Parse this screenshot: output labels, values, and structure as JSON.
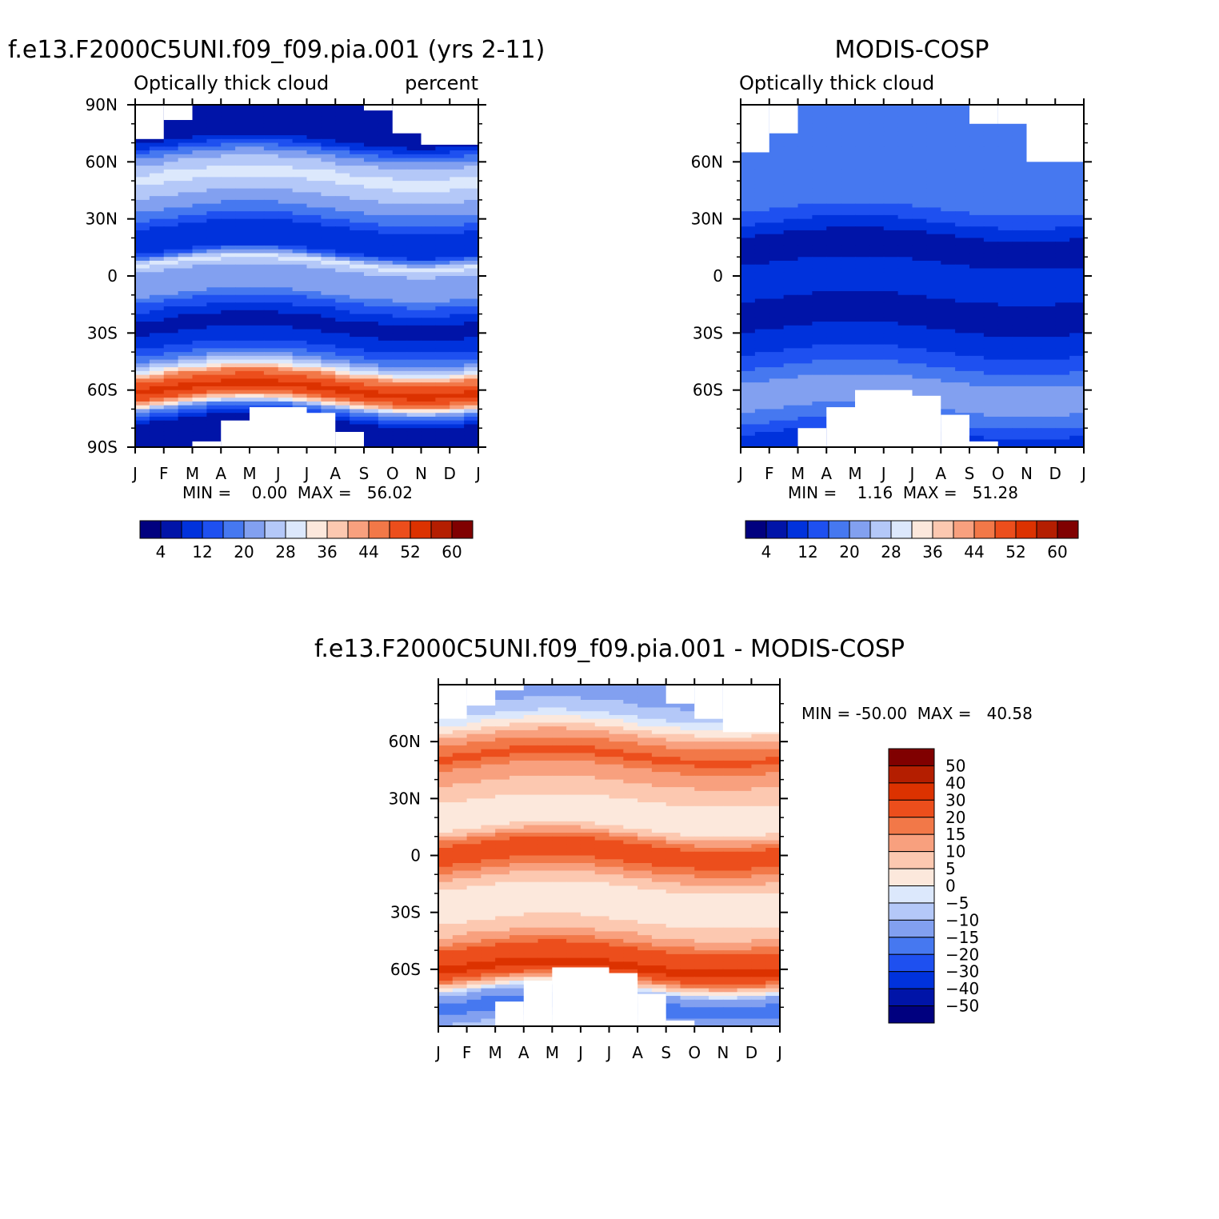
{
  "chart_data": [
    {
      "type": "heatmap",
      "title": "f.e13.F2000C5UNI.f09_f09.pia.001 (yrs 2-11)",
      "subtitle_left": "Optically thick cloud",
      "subtitle_right": "percent",
      "x_ticklabels": [
        "J",
        "F",
        "M",
        "A",
        "M",
        "J",
        "J",
        "A",
        "S",
        "O",
        "N",
        "D",
        "J"
      ],
      "y_ticklabels": [
        "90N",
        "60N",
        "30N",
        "0",
        "30S",
        "60S",
        "90S"
      ],
      "y_tick_values": [
        90,
        60,
        30,
        0,
        -30,
        -60,
        -90
      ],
      "ylim": [
        -90,
        90
      ],
      "stats_text": "MIN =    0.00  MAX =   56.02",
      "min": 0.0,
      "max": 56.02,
      "colorbar": {
        "labels": [
          "4",
          "12",
          "20",
          "28",
          "36",
          "44",
          "52",
          "60"
        ],
        "colors": [
          "#00007f",
          "#0014a8",
          "#0032dc",
          "#1e50f0",
          "#4678f0",
          "#82a0f0",
          "#b4c8f8",
          "#dce8fc",
          "#fce8dc",
          "#fcc8b0",
          "#f8a07e",
          "#f27848",
          "#ec4e1c",
          "#dc3200",
          "#b41e00",
          "#800000"
        ]
      },
      "profile": [
        {
          "lat": 72,
          "value": 6
        },
        {
          "lat": 62,
          "value": 22
        },
        {
          "lat": 52,
          "value": 30
        },
        {
          "lat": 42,
          "value": 24
        },
        {
          "lat": 32,
          "value": 18
        },
        {
          "lat": 22,
          "value": 8
        },
        {
          "lat": 14,
          "value": 8
        },
        {
          "lat": 7,
          "value": 30
        },
        {
          "lat": 0,
          "value": 20
        },
        {
          "lat": -6,
          "value": 24
        },
        {
          "lat": -15,
          "value": 14
        },
        {
          "lat": -25,
          "value": 6
        },
        {
          "lat": -35,
          "value": 10
        },
        {
          "lat": -43,
          "value": 18
        },
        {
          "lat": -49,
          "value": 30
        },
        {
          "lat": -53,
          "value": 46
        },
        {
          "lat": -60,
          "value": 54
        },
        {
          "lat": -65,
          "value": 46
        },
        {
          "lat": -70,
          "value": 20
        },
        {
          "lat": -78,
          "value": 4
        }
      ],
      "missing_top": [
        {
          "months": [
            0,
            1
          ],
          "above_lat": 72
        },
        {
          "months": [
            1,
            2
          ],
          "above_lat": 82
        },
        {
          "months": [
            8,
            9
          ],
          "above_lat": 87
        },
        {
          "months": [
            9,
            10
          ],
          "above_lat": 75
        },
        {
          "months": [
            10,
            12
          ],
          "above_lat": 69
        }
      ],
      "missing_bottom": [
        {
          "months": [
            2,
            3
          ],
          "below_lat": -87
        },
        {
          "months": [
            3,
            4
          ],
          "below_lat": -76
        },
        {
          "months": [
            4,
            6
          ],
          "below_lat": -69
        },
        {
          "months": [
            6,
            7
          ],
          "below_lat": -72
        },
        {
          "months": [
            7,
            8
          ],
          "below_lat": -82
        }
      ]
    },
    {
      "type": "heatmap",
      "title": "MODIS-COSP",
      "subtitle_left": "Optically thick cloud",
      "x_ticklabels": [
        "J",
        "F",
        "M",
        "A",
        "M",
        "J",
        "J",
        "A",
        "S",
        "O",
        "N",
        "D",
        "J"
      ],
      "y_ticklabels": [
        "60N",
        "30N",
        "0",
        "30S",
        "60S"
      ],
      "y_tick_values": [
        60,
        30,
        0,
        -30,
        -60
      ],
      "ylim": [
        -90,
        90
      ],
      "stats_text": "MIN =    1.16  MAX =   51.28",
      "min": 1.16,
      "max": 51.28,
      "colorbar": {
        "labels": [
          "4",
          "12",
          "20",
          "28",
          "36",
          "44",
          "52",
          "60"
        ],
        "colors": [
          "#00007f",
          "#0014a8",
          "#0032dc",
          "#1e50f0",
          "#4678f0",
          "#82a0f0",
          "#b4c8f8",
          "#dce8fc",
          "#fce8dc",
          "#fcc8b0",
          "#f8a07e",
          "#f27848",
          "#ec4e1c",
          "#dc3200",
          "#b41e00",
          "#800000"
        ]
      },
      "profile": [
        {
          "lat": 80,
          "value": 18
        },
        {
          "lat": 65,
          "value": 16
        },
        {
          "lat": 50,
          "value": 18
        },
        {
          "lat": 35,
          "value": 16
        },
        {
          "lat": 25,
          "value": 10
        },
        {
          "lat": 15,
          "value": 4
        },
        {
          "lat": 5,
          "value": 9
        },
        {
          "lat": -5,
          "value": 10
        },
        {
          "lat": -15,
          "value": 7
        },
        {
          "lat": -20,
          "value": 4
        },
        {
          "lat": -30,
          "value": 9
        },
        {
          "lat": -40,
          "value": 12
        },
        {
          "lat": -48,
          "value": 16
        },
        {
          "lat": -55,
          "value": 20
        },
        {
          "lat": -62,
          "value": 24
        },
        {
          "lat": -70,
          "value": 20
        },
        {
          "lat": -80,
          "value": 14
        },
        {
          "lat": -87,
          "value": 8
        }
      ],
      "missing_top": [
        {
          "months": [
            0,
            1
          ],
          "above_lat": 65
        },
        {
          "months": [
            1,
            2
          ],
          "above_lat": 75
        },
        {
          "months": [
            2,
            8
          ],
          "above_lat": 90
        },
        {
          "months": [
            8,
            9
          ],
          "above_lat": 80
        },
        {
          "months": [
            9,
            10
          ],
          "above_lat": 80
        },
        {
          "months": [
            10,
            12
          ],
          "above_lat": 60
        }
      ],
      "missing_bottom": [
        {
          "months": [
            2,
            3
          ],
          "below_lat": -80
        },
        {
          "months": [
            3,
            4
          ],
          "below_lat": -69
        },
        {
          "months": [
            4,
            6
          ],
          "below_lat": -60
        },
        {
          "months": [
            6,
            7
          ],
          "below_lat": -63
        },
        {
          "months": [
            7,
            8
          ],
          "below_lat": -73
        },
        {
          "months": [
            8,
            9
          ],
          "below_lat": -87
        }
      ]
    },
    {
      "type": "heatmap",
      "title": "f.e13.F2000C5UNI.f09_f09.pia.001 - MODIS-COSP",
      "x_ticklabels": [
        "J",
        "F",
        "M",
        "A",
        "M",
        "J",
        "J",
        "A",
        "S",
        "O",
        "N",
        "D",
        "J"
      ],
      "y_ticklabels": [
        "60N",
        "30N",
        "0",
        "30S",
        "60S"
      ],
      "y_tick_values": [
        60,
        30,
        0,
        -30,
        -60
      ],
      "ylim": [
        -90,
        90
      ],
      "stats_text": "MIN = -50.00  MAX =   40.58",
      "min": -50.0,
      "max": 40.58,
      "colorbar": {
        "labels": [
          "50",
          "40",
          "30",
          "20",
          "15",
          "10",
          "5",
          "0",
          "-5",
          "-10",
          "-15",
          "-20",
          "-30",
          "-40",
          "-50"
        ],
        "colors": [
          "#800000",
          "#b41e00",
          "#dc3200",
          "#ec4e1c",
          "#f27848",
          "#f8a07e",
          "#fcc8b0",
          "#fce8dc",
          "#dce8fc",
          "#b4c8f8",
          "#82a0f0",
          "#4678f0",
          "#1e50f0",
          "#0032dc",
          "#0014a8",
          "#00007f"
        ]
      },
      "profile": [
        {
          "lat": 82,
          "value": -12
        },
        {
          "lat": 72,
          "value": -4
        },
        {
          "lat": 62,
          "value": 12
        },
        {
          "lat": 52,
          "value": 22
        },
        {
          "lat": 45,
          "value": 14
        },
        {
          "lat": 35,
          "value": 8
        },
        {
          "lat": 25,
          "value": 3
        },
        {
          "lat": 14,
          "value": 5
        },
        {
          "lat": 6,
          "value": 20
        },
        {
          "lat": -2,
          "value": 22
        },
        {
          "lat": -10,
          "value": 12
        },
        {
          "lat": -18,
          "value": 4
        },
        {
          "lat": -28,
          "value": 3
        },
        {
          "lat": -38,
          "value": 6
        },
        {
          "lat": -45,
          "value": 14
        },
        {
          "lat": -52,
          "value": 25
        },
        {
          "lat": -60,
          "value": 33
        },
        {
          "lat": -66,
          "value": 15
        },
        {
          "lat": -73,
          "value": -12
        },
        {
          "lat": -80,
          "value": -18
        },
        {
          "lat": -88,
          "value": -10
        }
      ],
      "missing_top": [
        {
          "months": [
            0,
            1
          ],
          "above_lat": 72
        },
        {
          "months": [
            1,
            2
          ],
          "above_lat": 79
        },
        {
          "months": [
            2,
            3
          ],
          "above_lat": 87
        },
        {
          "months": [
            8,
            9
          ],
          "above_lat": 80
        },
        {
          "months": [
            9,
            10
          ],
          "above_lat": 72
        },
        {
          "months": [
            10,
            12
          ],
          "above_lat": 65
        }
      ],
      "missing_bottom": [
        {
          "months": [
            2,
            3
          ],
          "below_lat": -77
        },
        {
          "months": [
            3,
            4
          ],
          "below_lat": -66
        },
        {
          "months": [
            4,
            6
          ],
          "below_lat": -59
        },
        {
          "months": [
            6,
            7
          ],
          "below_lat": -62
        },
        {
          "months": [
            7,
            8
          ],
          "below_lat": -73
        },
        {
          "months": [
            8,
            9
          ],
          "below_lat": -87
        }
      ]
    }
  ]
}
